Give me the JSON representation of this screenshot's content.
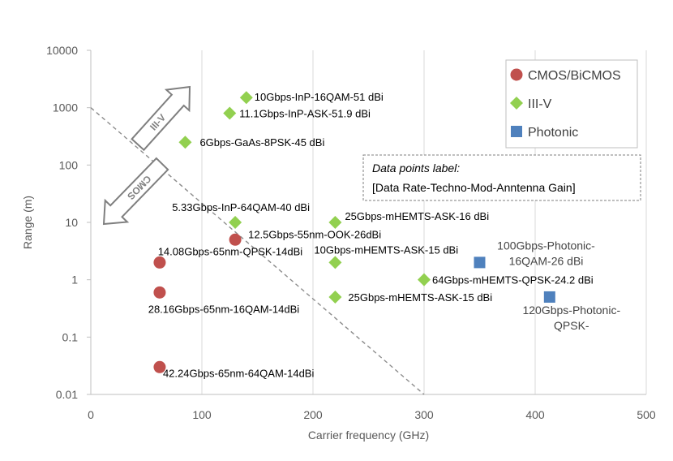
{
  "chart_data": {
    "type": "scatter",
    "title": "",
    "xlabel": "Carrier frequency (GHz)",
    "ylabel": "Range (m)",
    "xlim": [
      0,
      500
    ],
    "ylim": [
      0.01,
      10000
    ],
    "yscale": "log",
    "x_ticks": [
      "0",
      "100",
      "200",
      "300",
      "400",
      "500"
    ],
    "y_ticks": [
      "10000",
      "1000",
      "100",
      "10",
      "1",
      "0.1",
      "0.01"
    ],
    "grid": "vertical",
    "legend_position": "top-right",
    "series": [
      {
        "name": "CMOS/BiCMOS",
        "marker": "circle",
        "color": "#C0504D",
        "points": [
          {
            "x": 62,
            "y": 2,
            "label": "14.08Gbps-65nm-QPSK-14dBi"
          },
          {
            "x": 62,
            "y": 0.6,
            "label": "28.16Gbps-65nm-16QAM-14dBi"
          },
          {
            "x": 62,
            "y": 0.03,
            "label": "42.24Gbps-65nm-64QAM-14dBi"
          },
          {
            "x": 130,
            "y": 5,
            "label": "12.5Gbps-55nm-OOK-26dBi"
          }
        ]
      },
      {
        "name": "III-V",
        "marker": "diamond",
        "color": "#92D050",
        "points": [
          {
            "x": 140,
            "y": 1500,
            "label": "10Gbps-InP-16QAM-51 dBi"
          },
          {
            "x": 125,
            "y": 800,
            "label": "11.1Gbps-InP-ASK-51.9 dBi"
          },
          {
            "x": 85,
            "y": 250,
            "label": "6Gbps-GaAs-8PSK-45 dBi"
          },
          {
            "x": 130,
            "y": 10,
            "label": "5.33Gbps-InP-64QAM-40 dBi"
          },
          {
            "x": 220,
            "y": 10,
            "label": "25Gbps-mHEMTS-ASK-16 dBi"
          },
          {
            "x": 220,
            "y": 2,
            "label": "10Gbps-mHEMTS-ASK-15 dBi"
          },
          {
            "x": 220,
            "y": 0.5,
            "label": "25Gbps-mHEMTS-ASK-15 dBi"
          },
          {
            "x": 300,
            "y": 1,
            "label": "64Gbps-mHEMTS-QPSK-24.2 dBi"
          }
        ]
      },
      {
        "name": "Photonic",
        "marker": "square",
        "color": "#4F81BD",
        "points": [
          {
            "x": 350,
            "y": 2,
            "label": "100Gbps-Photonic-16QAM-26 dBi"
          },
          {
            "x": 413,
            "y": 0.5,
            "label": "120Gbps-Photonic-QPSK-"
          }
        ]
      }
    ],
    "boundary_line": {
      "from": [
        0,
        1000
      ],
      "to": [
        300,
        0.01
      ],
      "style": "dashed"
    },
    "annotations": {
      "note_title": "Data points label:",
      "note_body": "[Data Rate-Techno-Mod-Anntenna Gain]",
      "arrow_up_label": "III-V",
      "arrow_down_label": "CMOS"
    }
  }
}
